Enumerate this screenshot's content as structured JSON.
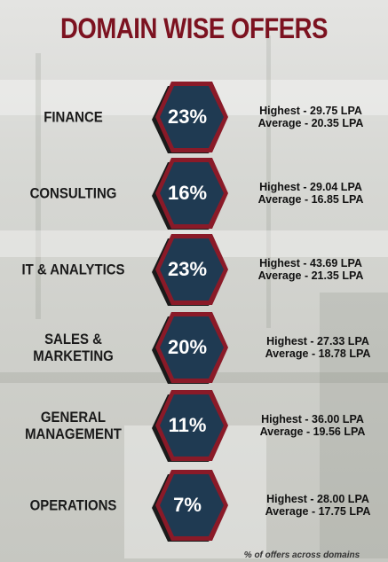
{
  "title": "DOMAIN WISE OFFERS",
  "domains": [
    {
      "name": "FINANCE",
      "percent": "23%",
      "highest": "Highest - 29.75 LPA",
      "average": "Average - 20.35 LPA"
    },
    {
      "name": "CONSULTING",
      "percent": "16%",
      "highest": "Highest - 29.04 LPA",
      "average": "Average - 16.85 LPA"
    },
    {
      "name": "IT & ANALYTICS",
      "percent": "23%",
      "highest": "Highest - 43.69 LPA",
      "average": "Average - 21.35 LPA"
    },
    {
      "name_line1": "SALES &",
      "name_line2": "MARKETING",
      "percent": "20%",
      "highest": "Highest - 27.33 LPA",
      "average": "Average - 18.78 LPA"
    },
    {
      "name_line1": "GENERAL",
      "name_line2": "MANAGEMENT",
      "percent": "11%",
      "highest": "Highest - 36.00 LPA",
      "average": "Average - 19.56 LPA"
    },
    {
      "name": "OPERATIONS",
      "percent": "7%",
      "highest": "Highest - 28.00 LPA",
      "average": "Average - 17.75 LPA"
    }
  ],
  "footnote": "% of offers across domains",
  "colors": {
    "title": "#7c1220",
    "hex_fill": "#1f3a52",
    "hex_border": "#8a1a28",
    "hex_shadow": "#1a1a1a"
  }
}
